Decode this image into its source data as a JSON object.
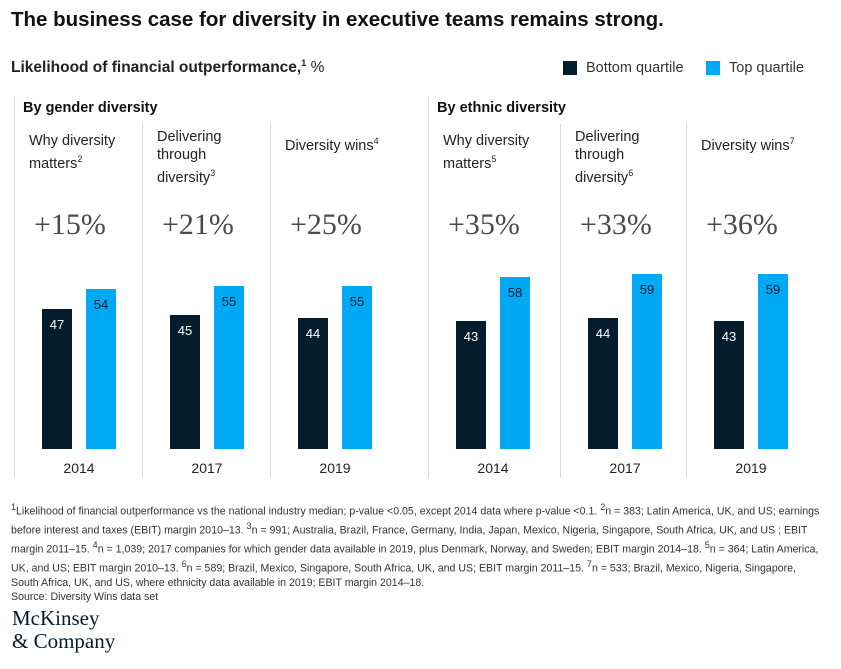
{
  "title": "The business case for diversity in executive teams remains strong.",
  "subtitle": "Likelihood of financial outperformance,",
  "subtitle_sup": "1",
  "subtitle_unit": "%",
  "legend": [
    {
      "label": "Bottom quartile",
      "color": "#051c2c"
    },
    {
      "label": "Top quartile",
      "color": "#00a9f4"
    }
  ],
  "chart_data": {
    "type": "bar",
    "ylabel": "Likelihood of financial outperformance, %",
    "groups": [
      {
        "name": "By gender diversity",
        "panels": [
          {
            "title": "Why diversity matters",
            "sup": "2",
            "delta": "+15%",
            "year": "2014",
            "bottom": 47,
            "top": 54
          },
          {
            "title": "Delivering through diversity",
            "sup": "3",
            "delta": "+21%",
            "year": "2017",
            "bottom": 45,
            "top": 55
          },
          {
            "title": "Diversity wins",
            "sup": "4",
            "delta": "+25%",
            "year": "2019",
            "bottom": 44,
            "top": 55
          }
        ]
      },
      {
        "name": "By ethnic diversity",
        "panels": [
          {
            "title": "Why diversity matters",
            "sup": "5",
            "delta": "+35%",
            "year": "2014",
            "bottom": 43,
            "top": 58
          },
          {
            "title": "Delivering through diversity",
            "sup": "6",
            "delta": "+33%",
            "year": "2017",
            "bottom": 44,
            "top": 59
          },
          {
            "title": "Diversity wins",
            "sup": "7",
            "delta": "+36%",
            "year": "2019",
            "bottom": 43,
            "top": 59
          }
        ]
      }
    ]
  },
  "notes": "<sup>1</sup>Likelihood of financial outperformance vs the national industry median; p-value <0.05, except 2014 data where p-value <0.1. <sup>2</sup>n = 383; Latin America, UK, and US; earnings before interest and taxes (EBIT) margin 2010–13. <sup>3</sup>n = 991; Australia, Brazil, France, Germany, India, Japan, Mexico, Nigeria, Singapore, South Africa, UK, and US ; EBIT margin 2011–15. <sup>4</sup>n = 1,039; 2017 companies for which gender data available in 2019, plus Denmark, Norway, and Sweden;  EBIT margin 2014–18. <sup>5</sup>n = 364; Latin America, UK, and US; EBIT margin 2010–13. <sup>6</sup>n = 589; Brazil, Mexico, Singapore, South Africa, UK, and US; EBIT margin 2011–15. <sup>7</sup>n = 533; Brazil, Mexico, Nigeria, Singapore, South Africa, UK, and US, where ethnicity data available in 2019; EBIT margin 2014–18.",
  "source": "Source: Diversity Wins data set",
  "logo": [
    "McKinsey",
    "& Company"
  ]
}
